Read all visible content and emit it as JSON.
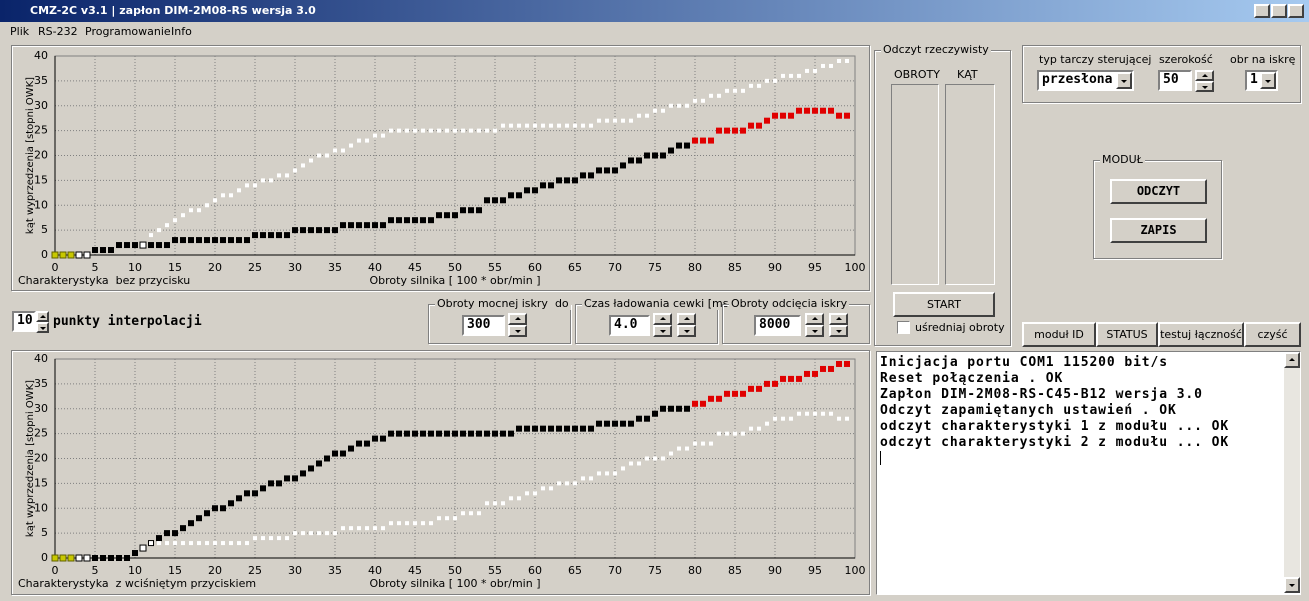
{
  "window": {
    "title": "CMZ-2C v3.1 | zapłon DIM-2M08-RS wersja 3.0"
  },
  "menu": [
    "Plik",
    "RS-232",
    "Programowanie",
    "Info"
  ],
  "chart_data": [
    {
      "type": "scatter",
      "caption": "Charakterystyka  bez przycisku",
      "x_label": "Obroty silnika [ 100 * obr/min ]",
      "y_label": "kąt wyprzedzenia [stopni OWK]",
      "xlim": [
        0,
        100
      ],
      "ylim": [
        0,
        40
      ],
      "xticks": [
        0,
        5,
        10,
        15,
        20,
        25,
        30,
        35,
        40,
        45,
        50,
        55,
        60,
        65,
        70,
        75,
        80,
        85,
        90,
        95,
        100
      ],
      "yticks": [
        0,
        5,
        10,
        15,
        20,
        25,
        30,
        35,
        40
      ],
      "grid": true,
      "series": [
        {
          "color": "#c8c800",
          "edgecolor": "#606000",
          "marker_size": 6,
          "x": [
            0,
            1,
            2
          ],
          "values": [
            0,
            0,
            0
          ]
        },
        {
          "color": "#ffffff",
          "edgecolor": "#000000",
          "marker_size": 6,
          "x": [
            3,
            4,
            11
          ],
          "values": [
            0,
            0,
            2
          ]
        },
        {
          "color": "#000000",
          "marker_size": 6,
          "x": [
            5,
            6,
            7,
            8,
            9,
            10,
            12,
            13,
            14,
            15,
            16,
            17,
            18,
            19,
            20,
            21,
            22,
            23,
            24,
            25,
            26,
            27,
            28,
            29,
            30,
            31,
            32,
            33,
            34,
            35,
            36,
            37,
            38,
            39,
            40,
            41,
            42,
            43,
            44,
            45,
            46,
            47,
            48,
            49,
            50,
            51,
            52,
            53,
            54,
            55,
            56,
            57,
            58,
            59,
            60,
            61,
            62,
            63,
            64,
            65,
            66,
            67,
            68,
            69,
            70,
            71,
            72,
            73,
            74,
            75,
            76,
            77,
            78,
            79
          ],
          "values": [
            1,
            1,
            1,
            2,
            2,
            2,
            2,
            2,
            2,
            3,
            3,
            3,
            3,
            3,
            3,
            3,
            3,
            3,
            3,
            4,
            4,
            4,
            4,
            4,
            5,
            5,
            5,
            5,
            5,
            5,
            6,
            6,
            6,
            6,
            6,
            6,
            7,
            7,
            7,
            7,
            7,
            7,
            8,
            8,
            8,
            9,
            9,
            9,
            11,
            11,
            11,
            12,
            12,
            13,
            13,
            14,
            14,
            15,
            15,
            15,
            16,
            16,
            17,
            17,
            17,
            18,
            19,
            19,
            20,
            20,
            20,
            21,
            22,
            22
          ]
        },
        {
          "color": "#e00000",
          "marker_size": 6,
          "x": [
            80,
            81,
            82,
            83,
            84,
            85,
            86,
            87,
            88,
            89,
            90,
            91,
            92,
            93,
            94,
            95,
            96,
            97,
            98,
            99
          ],
          "values": [
            23,
            23,
            23,
            25,
            25,
            25,
            25,
            26,
            26,
            27,
            28,
            28,
            28,
            29,
            29,
            29,
            29,
            29,
            28,
            28
          ]
        },
        {
          "color": "#ffffff",
          "marker_size": 4,
          "x": [
            12,
            13,
            14,
            15,
            16,
            17,
            18,
            19,
            20,
            21,
            22,
            23,
            24,
            25,
            26,
            27,
            28,
            29,
            30,
            31,
            32,
            33,
            34,
            35,
            36,
            37,
            38,
            39,
            40,
            41,
            42,
            43,
            44,
            45,
            46,
            47,
            48,
            49,
            50,
            51,
            52,
            53,
            54,
            55,
            56,
            57,
            58,
            59,
            60,
            61,
            62,
            63,
            64,
            65,
            66,
            67,
            68,
            69,
            70,
            71,
            72,
            73,
            74,
            75,
            76,
            77,
            78,
            79,
            80,
            81,
            82,
            83,
            84,
            85,
            86,
            87,
            88,
            89,
            90,
            91,
            92,
            93,
            94,
            95,
            96,
            97,
            98,
            99
          ],
          "values": [
            4,
            5,
            6,
            7,
            8,
            9,
            9,
            10,
            11,
            12,
            12,
            13,
            14,
            14,
            15,
            15,
            16,
            16,
            17,
            18,
            19,
            20,
            20,
            21,
            21,
            22,
            23,
            23,
            24,
            24,
            25,
            25,
            25,
            25,
            25,
            25,
            25,
            25,
            25,
            25,
            25,
            25,
            25,
            25,
            26,
            26,
            26,
            26,
            26,
            26,
            26,
            26,
            26,
            26,
            26,
            26,
            27,
            27,
            27,
            27,
            27,
            28,
            28,
            29,
            29,
            30,
            30,
            30,
            31,
            31,
            32,
            32,
            33,
            33,
            33,
            34,
            34,
            35,
            35,
            36,
            36,
            36,
            37,
            37,
            38,
            38,
            39,
            39
          ]
        }
      ]
    },
    {
      "type": "scatter",
      "caption": "Charakterystyka  z wciśniętym przyciskiem",
      "x_label": "Obroty silnika [ 100 * obr/min ]",
      "y_label": "kąt wyprzedzenia [stopni OWK]",
      "xlim": [
        0,
        100
      ],
      "ylim": [
        0,
        40
      ],
      "xticks": [
        0,
        5,
        10,
        15,
        20,
        25,
        30,
        35,
        40,
        45,
        50,
        55,
        60,
        65,
        70,
        75,
        80,
        85,
        90,
        95,
        100
      ],
      "yticks": [
        0,
        5,
        10,
        15,
        20,
        25,
        30,
        35,
        40
      ],
      "grid": true,
      "series": [
        {
          "color": "#c8c800",
          "edgecolor": "#606000",
          "marker_size": 6,
          "x": [
            0,
            1,
            2
          ],
          "values": [
            0,
            0,
            0
          ]
        },
        {
          "color": "#ffffff",
          "edgecolor": "#000000",
          "marker_size": 6,
          "x": [
            3,
            4,
            11
          ],
          "values": [
            0,
            0,
            2
          ]
        },
        {
          "color": "#000000",
          "marker_size": 6,
          "x": [
            5,
            6,
            7,
            8,
            9,
            10,
            12,
            13,
            14,
            15,
            16,
            17,
            18,
            19,
            20,
            21,
            22,
            23,
            24,
            25,
            26,
            27,
            28,
            29,
            30,
            31,
            32,
            33,
            34,
            35,
            36,
            37,
            38,
            39,
            40,
            41,
            42,
            43,
            44,
            45,
            46,
            47,
            48,
            49,
            50,
            51,
            52,
            53,
            54,
            55,
            56,
            57,
            58,
            59,
            60,
            61,
            62,
            63,
            64,
            65,
            66,
            67,
            68,
            69,
            70,
            71,
            72,
            73,
            74,
            75,
            76,
            77,
            78,
            79
          ],
          "values": [
            0,
            0,
            0,
            0,
            0,
            1,
            3,
            4,
            5,
            5,
            6,
            7,
            8,
            9,
            10,
            10,
            11,
            12,
            13,
            13,
            14,
            15,
            15,
            16,
            16,
            17,
            18,
            19,
            20,
            21,
            21,
            22,
            23,
            23,
            24,
            24,
            25,
            25,
            25,
            25,
            25,
            25,
            25,
            25,
            25,
            25,
            25,
            25,
            25,
            25,
            25,
            25,
            26,
            26,
            26,
            26,
            26,
            26,
            26,
            26,
            26,
            26,
            27,
            27,
            27,
            27,
            27,
            28,
            28,
            29,
            30,
            30,
            30,
            30
          ]
        },
        {
          "color": "#e00000",
          "marker_size": 6,
          "x": [
            80,
            81,
            82,
            83,
            84,
            85,
            86,
            87,
            88,
            89,
            90,
            91,
            92,
            93,
            94,
            95,
            96,
            97,
            98,
            99
          ],
          "values": [
            31,
            31,
            32,
            32,
            33,
            33,
            33,
            34,
            34,
            35,
            35,
            36,
            36,
            36,
            37,
            37,
            38,
            38,
            39,
            39
          ]
        },
        {
          "color": "#ffffff",
          "marker_size": 4,
          "x": [
            12,
            13,
            14,
            15,
            16,
            17,
            18,
            19,
            20,
            21,
            22,
            23,
            24,
            25,
            26,
            27,
            28,
            29,
            30,
            31,
            32,
            33,
            34,
            35,
            36,
            37,
            38,
            39,
            40,
            41,
            42,
            43,
            44,
            45,
            46,
            47,
            48,
            49,
            50,
            51,
            52,
            53,
            54,
            55,
            56,
            57,
            58,
            59,
            60,
            61,
            62,
            63,
            64,
            65,
            66,
            67,
            68,
            69,
            70,
            71,
            72,
            73,
            74,
            75,
            76,
            77,
            78,
            79,
            80,
            81,
            82,
            83,
            84,
            85,
            86,
            87,
            88,
            89,
            90,
            91,
            92,
            93,
            94,
            95,
            96,
            97,
            98,
            99
          ],
          "values": [
            3,
            3,
            3,
            3,
            3,
            3,
            3,
            3,
            3,
            3,
            3,
            3,
            3,
            4,
            4,
            4,
            4,
            4,
            5,
            5,
            5,
            5,
            5,
            5,
            6,
            6,
            6,
            6,
            6,
            6,
            7,
            7,
            7,
            7,
            7,
            7,
            8,
            8,
            8,
            9,
            9,
            9,
            11,
            11,
            11,
            12,
            12,
            13,
            13,
            14,
            14,
            15,
            15,
            15,
            16,
            16,
            17,
            17,
            17,
            18,
            19,
            19,
            20,
            20,
            20,
            21,
            22,
            22,
            23,
            23,
            23,
            25,
            25,
            25,
            25,
            26,
            26,
            27,
            28,
            28,
            28,
            29,
            29,
            29,
            29,
            29,
            28,
            28
          ]
        }
      ]
    }
  ],
  "interpolation": {
    "value": "10",
    "label": "punkty interpolacji"
  },
  "fields": [
    {
      "label": "Obroty mocnej iskry  do",
      "value": "300"
    },
    {
      "label": "Czas ładowania cewki [ms]",
      "value": "4.0"
    },
    {
      "label": "Obroty odcięcia iskry",
      "value": "8000"
    }
  ],
  "live_readout": {
    "title": "Odczyt rzeczywisty",
    "columns": [
      "OBROTY",
      "KĄT"
    ],
    "button": "START",
    "checkbox": "uśredniaj obroty"
  },
  "settings": {
    "labels": [
      "typ tarczy sterującej",
      "szerokość",
      "obr na iskrę"
    ],
    "disc_type": "przesłona",
    "width": "50",
    "sparks_per_rev": "1"
  },
  "module": {
    "title": "MODUŁ",
    "buttons": [
      "ODCZYT",
      "ZAPIS"
    ]
  },
  "tabs": [
    "moduł ID",
    "STATUS",
    "testuj łączność",
    "czyść"
  ],
  "log": [
    "Inicjacja portu COM1 115200 bit/s",
    "Reset połączenia . OK",
    "Zapłon DIM-2M08-RS-C45-B12 wersja 3.0",
    "Odczyt zapamiętanych ustawień . OK",
    "odczyt charakterystyki 1 z modułu ... OK",
    "odczyt charakterystyki 2 z modułu ... OK"
  ]
}
